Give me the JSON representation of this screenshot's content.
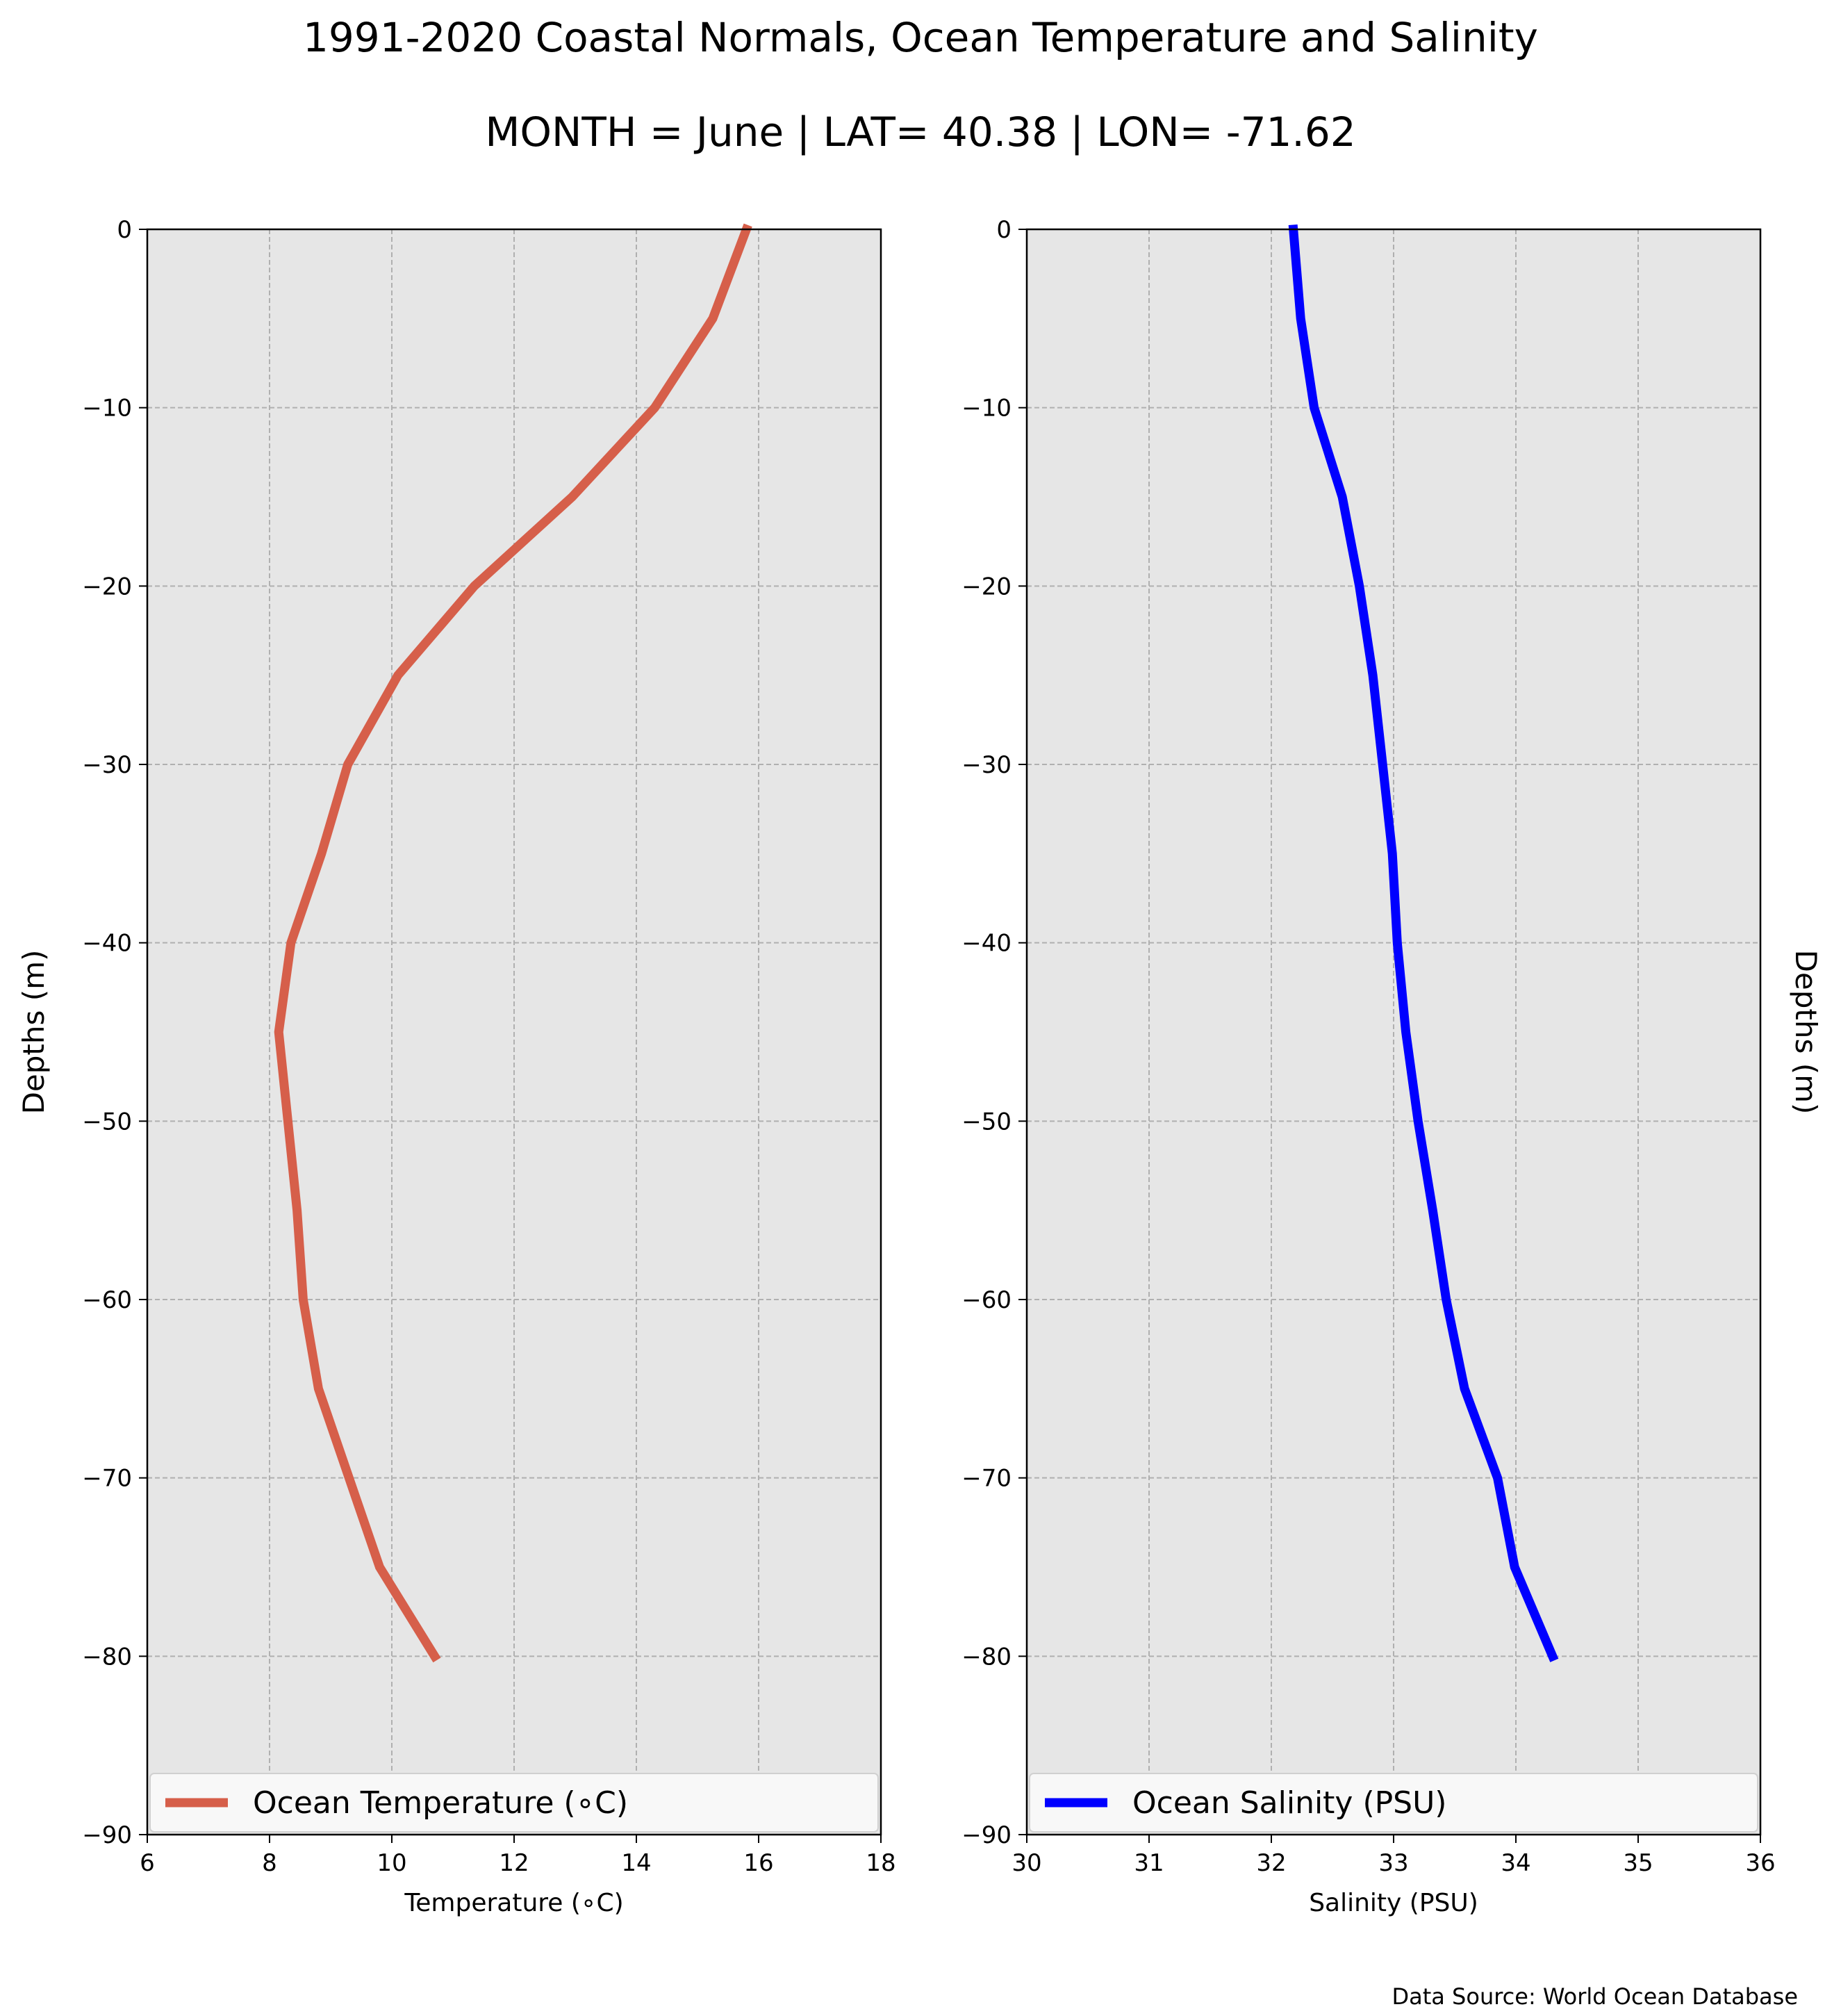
{
  "figure": {
    "title_line_1": "1991-2020 Coastal Normals, Ocean Temperature and Salinity",
    "title_line_2": "MONTH = June | LAT= 40.38 | LON= -71.62",
    "source_note": "Data Source: World Ocean Database"
  },
  "chart_data": [
    {
      "type": "line",
      "xlabel": "Temperature ($^\\circ$C)",
      "xlabel_display": "Temperature (∘C)",
      "ylabel": "Depths (m)",
      "xlim": [
        6,
        18
      ],
      "ylim": [
        -90,
        0
      ],
      "xticks": [
        6,
        8,
        10,
        12,
        14,
        16,
        18
      ],
      "xtick_labels": [
        "6",
        "8",
        "10",
        "12",
        "14",
        "16",
        "18"
      ],
      "yticks": [
        0,
        -10,
        -20,
        -30,
        -40,
        -50,
        -60,
        -70,
        -80,
        -90
      ],
      "ytick_labels": [
        "0",
        "−10",
        "−20",
        "−30",
        "−40",
        "−50",
        "−60",
        "−70",
        "−80",
        "−90"
      ],
      "grid": true,
      "legend_position": "lower center",
      "background_color": "#e6e6e6",
      "series": [
        {
          "name": "Ocean Temperature (∘C)",
          "color": "#d65f4a",
          "depth": [
            0,
            -5,
            -10,
            -15,
            -20,
            -25,
            -30,
            -35,
            -40,
            -45,
            -50,
            -55,
            -60,
            -65,
            -70,
            -75,
            -80
          ],
          "values": [
            15.8,
            15.25,
            14.3,
            12.95,
            11.35,
            10.1,
            9.28,
            8.85,
            8.35,
            8.15,
            8.3,
            8.45,
            8.55,
            8.8,
            9.3,
            9.8,
            10.7
          ]
        }
      ]
    },
    {
      "type": "line",
      "xlabel": "Salinity (PSU)",
      "ylabel": "Depths (m)",
      "ylabel_side": "right",
      "xlim": [
        30,
        36
      ],
      "ylim": [
        -90,
        0
      ],
      "xticks": [
        30,
        31,
        32,
        33,
        34,
        35,
        36
      ],
      "xtick_labels": [
        "30",
        "31",
        "32",
        "33",
        "34",
        "35",
        "36"
      ],
      "yticks": [
        0,
        -10,
        -20,
        -30,
        -40,
        -50,
        -60,
        -70,
        -80,
        -90
      ],
      "ytick_labels": [
        "0",
        "−10",
        "−20",
        "−30",
        "−40",
        "−50",
        "−60",
        "−70",
        "−80",
        "−90"
      ],
      "grid": true,
      "legend_position": "lower center",
      "background_color": "#e6e6e6",
      "series": [
        {
          "name": "Ocean Salinity (PSU)",
          "color": "#0000ff",
          "depth": [
            0,
            -5,
            -10,
            -15,
            -20,
            -25,
            -30,
            -35,
            -40,
            -45,
            -50,
            -55,
            -60,
            -65,
            -70,
            -75,
            -80
          ],
          "values": [
            32.18,
            32.24,
            32.35,
            32.58,
            32.72,
            32.83,
            32.91,
            32.99,
            33.03,
            33.1,
            33.2,
            33.32,
            33.43,
            33.58,
            33.85,
            33.99,
            34.3
          ]
        }
      ]
    }
  ]
}
